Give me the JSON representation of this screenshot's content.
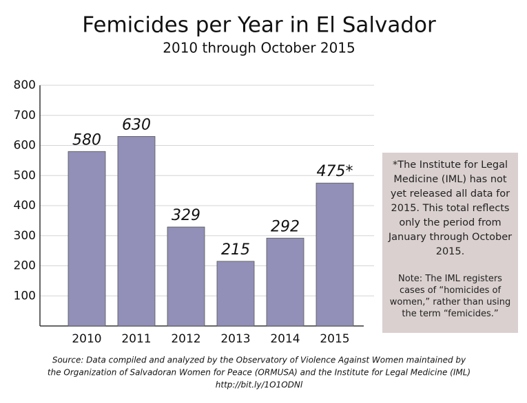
{
  "chart_data": {
    "type": "bar",
    "title": "Femicides per Year in El Salvador",
    "subtitle": "2010 through October 2015",
    "categories": [
      "2010",
      "2011",
      "2012",
      "2013",
      "2014",
      "2015"
    ],
    "values": [
      580,
      630,
      329,
      215,
      292,
      475
    ],
    "value_labels": [
      "580",
      "630",
      "329",
      "215",
      "292",
      "475*"
    ],
    "color": "#9290b8",
    "ylim": [
      0,
      800
    ],
    "yticks": [
      100,
      200,
      300,
      400,
      500,
      600,
      700,
      800
    ],
    "grid": true,
    "notes": [
      "*The Institute for Legal Medicine (IML) has not yet released all data for 2015. This total reflects only the period from January through October 2015.",
      "Note: The IML registers cases of “homicides of women,” rather than using the term “femicides.”"
    ],
    "source": [
      "Source: Data compiled and analyzed by the Observatory of Violence Against Women maintained by",
      "the Organization of Salvadoran Women for Peace (ORMUSA) and the Institute for Legal Medicine (IML)",
      "http://bit.ly/1O1ODNl"
    ]
  }
}
